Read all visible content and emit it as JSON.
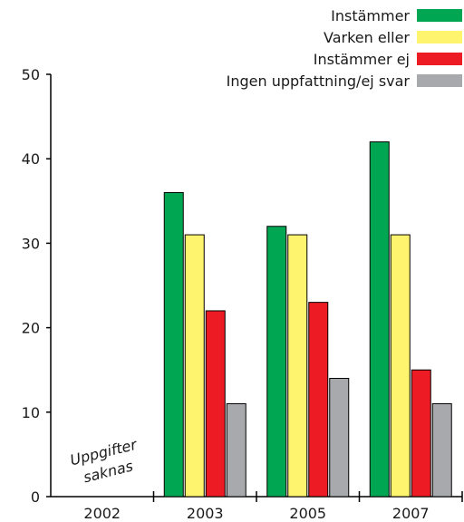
{
  "chart_data": {
    "type": "bar",
    "categories": [
      "2002",
      "2003",
      "2005",
      "2007"
    ],
    "series": [
      {
        "name": "Instämmer",
        "color": "#00a651",
        "values": [
          null,
          36,
          32,
          42
        ]
      },
      {
        "name": "Varken eller",
        "color": "#fff46e",
        "values": [
          null,
          31,
          31,
          31
        ]
      },
      {
        "name": "Instämmer ej",
        "color": "#ed1c24",
        "values": [
          null,
          22,
          23,
          15
        ]
      },
      {
        "name": "Ingen uppfattning/ej svar",
        "color": "#a7a9ac",
        "values": [
          null,
          11,
          14,
          11
        ]
      }
    ],
    "yticks": [
      0,
      10,
      20,
      30,
      40,
      50
    ],
    "ylim": [
      0,
      50
    ],
    "legend_position": "top-right",
    "grid": false,
    "annotations": [
      {
        "category": "2002",
        "lines": [
          "Uppgifter",
          "saknas"
        ]
      }
    ]
  }
}
